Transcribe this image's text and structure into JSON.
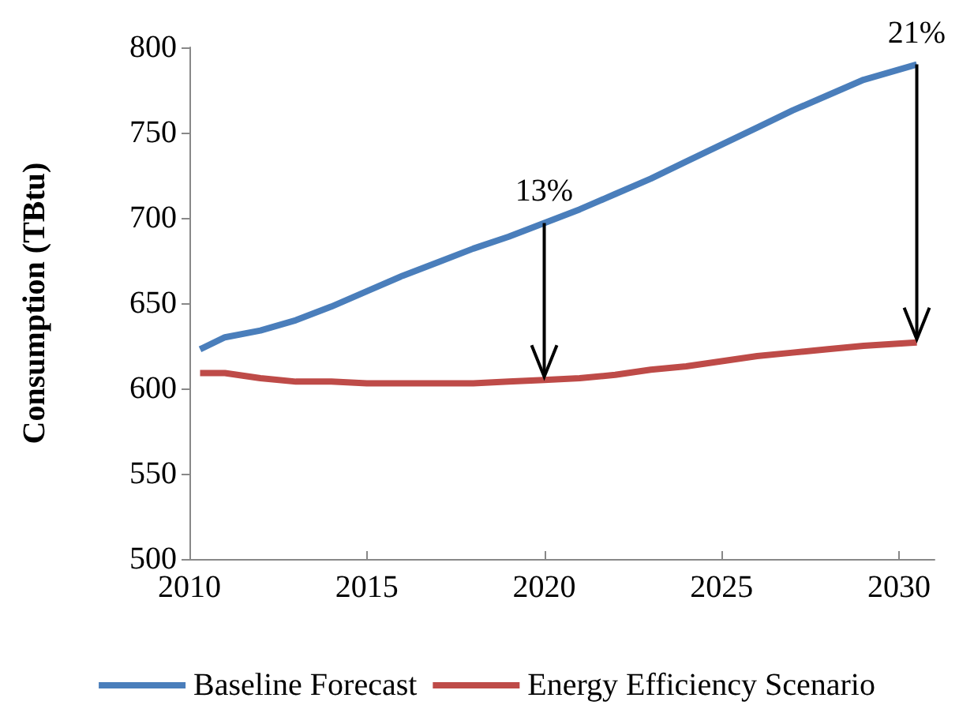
{
  "chart_data": {
    "type": "line",
    "ylabel": "Consumption (TBtu)",
    "xlim": [
      2010,
      2031
    ],
    "xticks": [
      2010,
      2015,
      2020,
      2025,
      2030
    ],
    "ylim": [
      500,
      800
    ],
    "yticks": [
      500,
      550,
      600,
      650,
      700,
      750,
      800
    ],
    "grid": false,
    "legend": "bottom",
    "marker": "none",
    "line_style": "solid",
    "x": [
      2010.3,
      2011,
      2012,
      2013,
      2014,
      2015,
      2016,
      2017,
      2018,
      2019,
      2020,
      2021,
      2022,
      2023,
      2024,
      2025,
      2026,
      2027,
      2028,
      2029,
      2030.5
    ],
    "series": [
      {
        "name": "Baseline Forecast",
        "color": "#4a7ebb",
        "values": [
          623,
          630,
          634,
          640,
          648,
          657,
          666,
          674,
          682,
          689,
          697,
          705,
          714,
          723,
          733,
          743,
          753,
          763,
          772,
          781,
          790
        ]
      },
      {
        "name": "Energy Efficiency Scenario",
        "color": "#be4b48",
        "values": [
          609,
          609,
          606,
          604,
          604,
          603,
          603,
          603,
          603,
          604,
          605,
          606,
          608,
          611,
          613,
          616,
          619,
          621,
          623,
          625,
          627
        ]
      }
    ],
    "annotations": [
      {
        "text": "13%",
        "x": 2020,
        "y": 697
      },
      {
        "text": "21%",
        "x": 2030.5,
        "y": 790
      }
    ]
  }
}
